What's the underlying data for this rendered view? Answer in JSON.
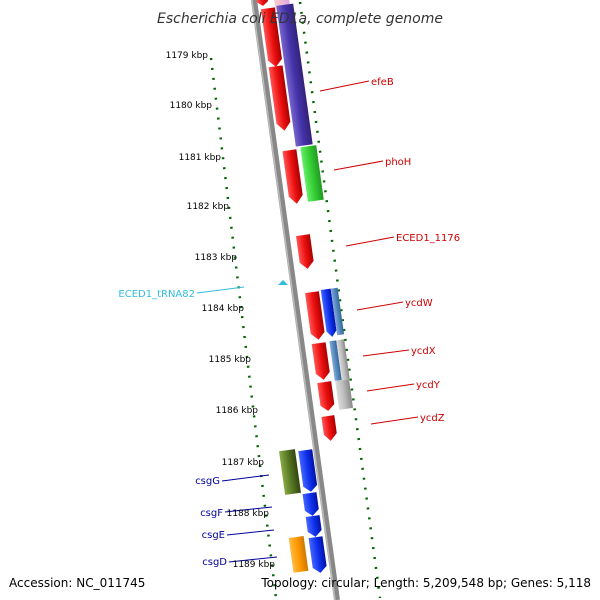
{
  "title": "Escherichia coli ED1a, complete genome",
  "footer": {
    "accession": "Accession: NC_011745",
    "topology": "Topology: circular; Length: 5,209,548 bp; Genes: 5,118"
  },
  "colors": {
    "background": "#ffffff",
    "backbone": "#888888",
    "kbp_ticks": "#006600",
    "label_red": "#cc0000",
    "label_blue": "#000099",
    "label_cyan": "#33bbdd"
  },
  "kbp_ticks": [
    {
      "label": "1179 kbp"
    },
    {
      "label": "1180 kbp"
    },
    {
      "label": "1181 kbp"
    },
    {
      "label": "1182 kbp"
    },
    {
      "label": "1183 kbp"
    },
    {
      "label": "1184 kbp"
    },
    {
      "label": "1185 kbp"
    },
    {
      "label": "1186 kbp"
    },
    {
      "label": "1187 kbp"
    },
    {
      "label": "1188 kbp"
    },
    {
      "label": "1189 kbp"
    }
  ],
  "gene_labels": [
    {
      "text": "efeB",
      "color": "#cc0000"
    },
    {
      "text": "phoH",
      "color": "#cc0000"
    },
    {
      "text": "ECED1_1176",
      "color": "#cc0000"
    },
    {
      "text": "ycdW",
      "color": "#cc0000"
    },
    {
      "text": "ycdX",
      "color": "#cc0000"
    },
    {
      "text": "ycdY",
      "color": "#cc0000"
    },
    {
      "text": "ycdZ",
      "color": "#cc0000"
    },
    {
      "text": "ECED1_tRNA82",
      "color": "#33bbdd"
    },
    {
      "text": "csgG",
      "color": "#000099"
    },
    {
      "text": "csgF",
      "color": "#000099"
    },
    {
      "text": "csgE",
      "color": "#000099"
    },
    {
      "text": "csgD",
      "color": "#000099"
    }
  ],
  "features": [
    {
      "kind": "cds-arrow",
      "color": "#dd1111",
      "icon": "red-gene-arrow"
    },
    {
      "kind": "cog-block",
      "color": "#5544aa",
      "icon": "purple-cog-block"
    },
    {
      "kind": "cog-block",
      "color": "#33cc33",
      "icon": "green-cog-block"
    },
    {
      "kind": "cog-block",
      "color": "#1133dd",
      "icon": "blue-cog-block"
    },
    {
      "kind": "cog-block",
      "color": "#5588bb",
      "icon": "steelblue-cog-block"
    },
    {
      "kind": "cog-block",
      "color": "#aaaaaa",
      "icon": "grey-cog-block"
    },
    {
      "kind": "cog-block",
      "color": "#557722",
      "icon": "olive-cog-block"
    },
    {
      "kind": "cog-block",
      "color": "#ff9900",
      "icon": "orange-cog-block"
    },
    {
      "kind": "trna",
      "color": "#33bbdd",
      "icon": "trna-triangle-icon"
    }
  ]
}
